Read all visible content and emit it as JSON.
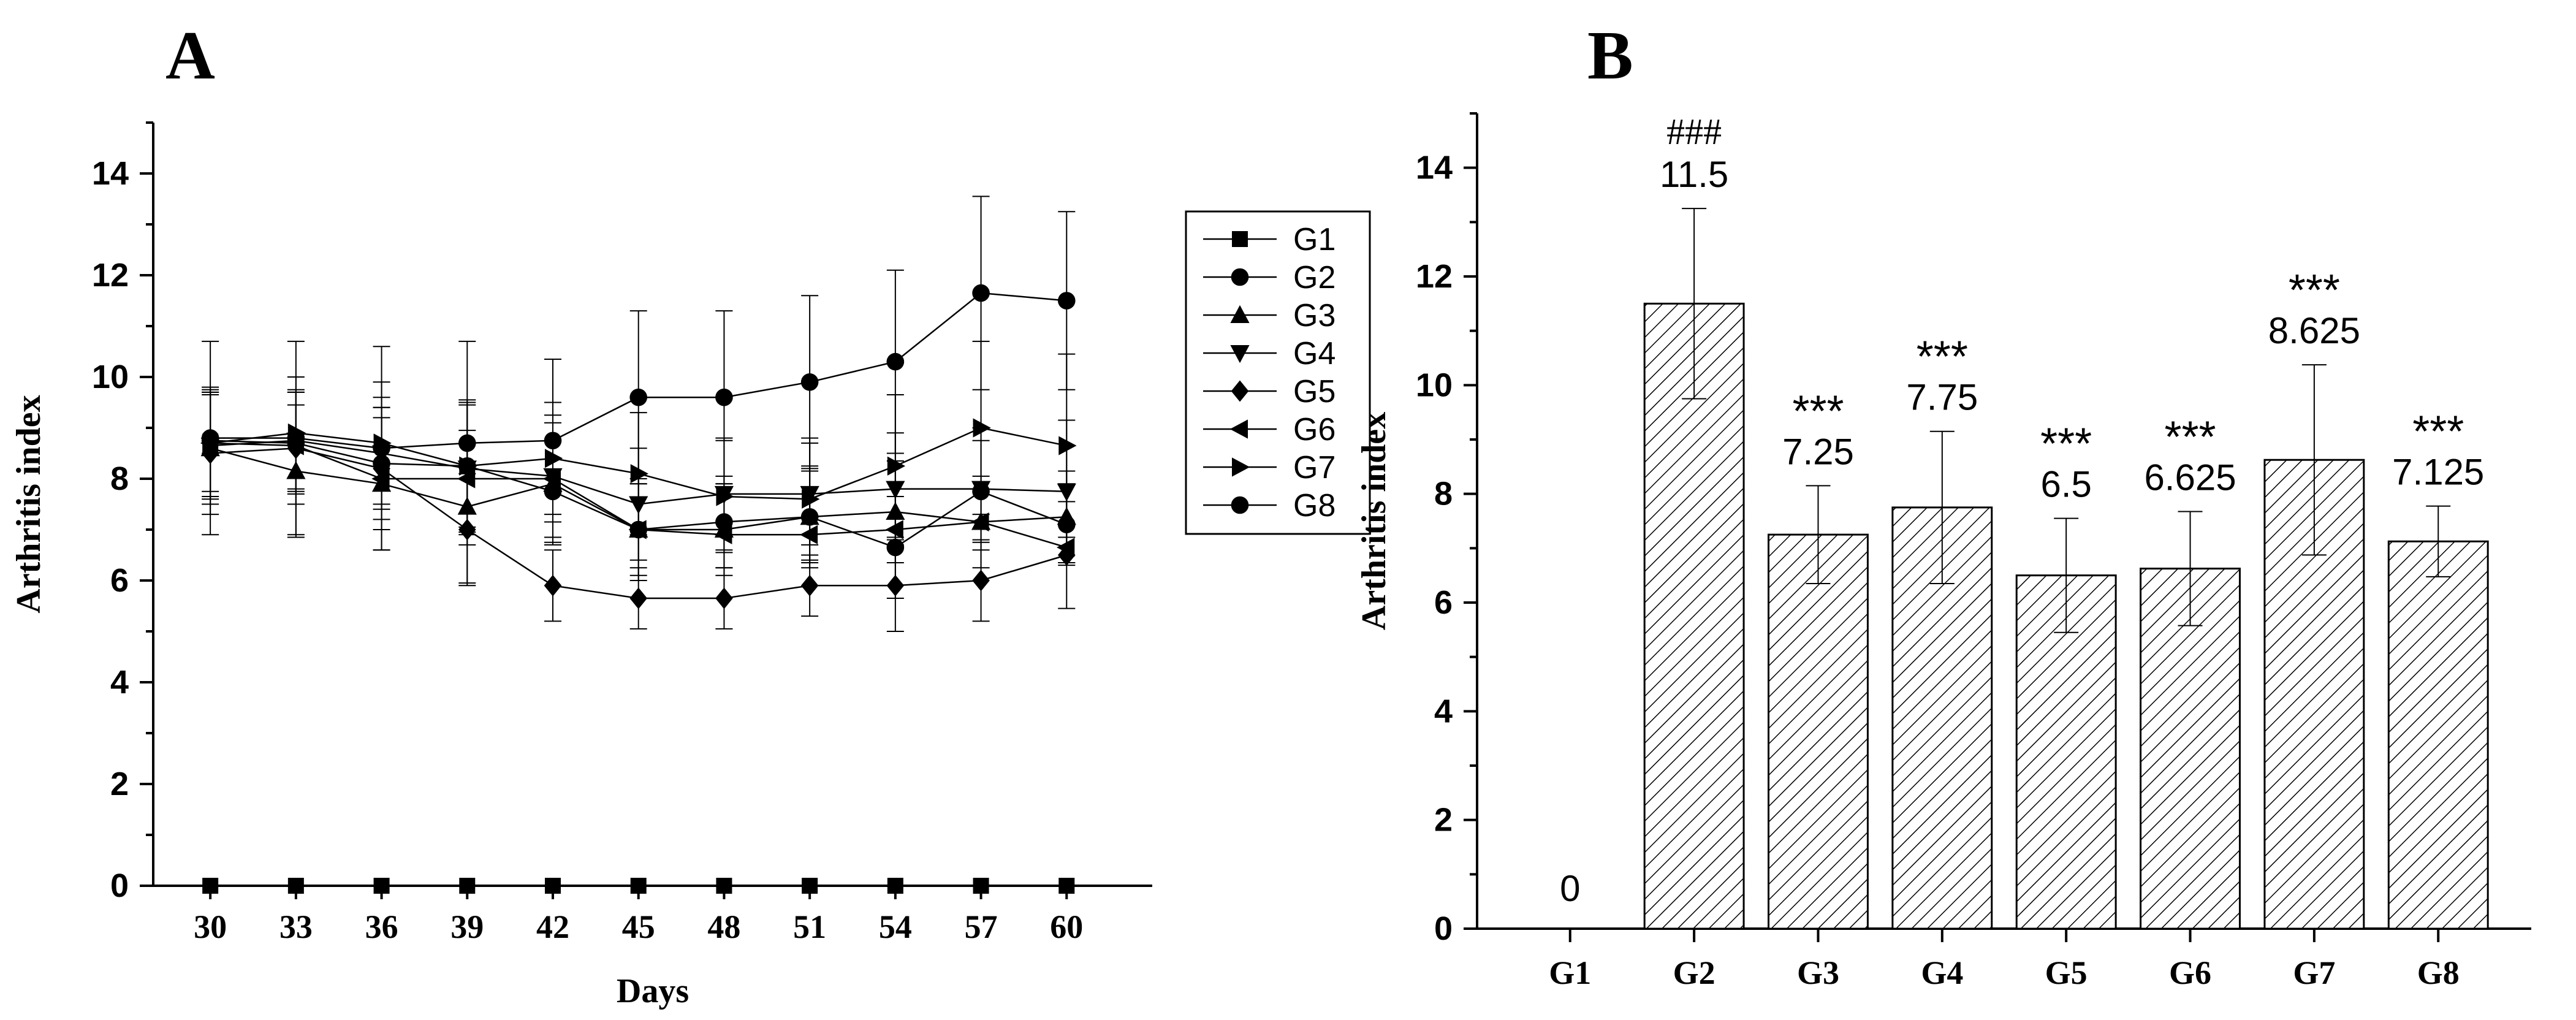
{
  "colors": {
    "ink": "#000000",
    "background": "#ffffff",
    "bar_fill": "#e6e6e6"
  },
  "chart_data": [
    {
      "panel": "A",
      "type": "line",
      "xlabel": "Days",
      "ylabel": "Arthritis index",
      "x": [
        30,
        33,
        36,
        39,
        42,
        45,
        48,
        51,
        54,
        57,
        60
      ],
      "xlim": [
        28,
        63
      ],
      "ylim": [
        0,
        15
      ],
      "yticks": [
        0,
        2,
        4,
        6,
        8,
        10,
        12,
        14
      ],
      "legend_position": "upper-right",
      "series": [
        {
          "name": "G1",
          "marker": "square",
          "values": [
            0,
            0,
            0,
            0,
            0,
            0,
            0,
            0,
            0,
            0,
            0
          ],
          "errors": [
            0,
            0,
            0,
            0,
            0,
            0,
            0,
            0,
            0,
            0,
            0
          ]
        },
        {
          "name": "G2",
          "marker": "circle",
          "values": [
            8.8,
            8.8,
            8.6,
            8.7,
            8.75,
            9.6,
            9.6,
            9.9,
            10.3,
            11.65,
            11.5
          ],
          "errors": [
            1.9,
            1.9,
            2.0,
            2.0,
            1.6,
            1.7,
            1.7,
            1.7,
            1.8,
            1.9,
            1.75
          ]
        },
        {
          "name": "G3",
          "marker": "triangle-up",
          "values": [
            8.6,
            8.15,
            7.9,
            7.45,
            7.9,
            7.0,
            7.0,
            7.25,
            7.35,
            7.15,
            7.25
          ],
          "errors": [
            1.1,
            1.3,
            1.3,
            1.5,
            1.2,
            1.0,
            0.9,
            1.0,
            1.0,
            0.9,
            0.9
          ]
        },
        {
          "name": "G4",
          "marker": "triangle-down",
          "values": [
            8.65,
            8.75,
            8.5,
            8.2,
            8.05,
            7.5,
            7.7,
            7.7,
            7.8,
            7.8,
            7.75
          ],
          "errors": [
            1.0,
            1.0,
            1.1,
            1.3,
            1.2,
            1.1,
            1.1,
            1.0,
            1.1,
            1.2,
            1.4
          ]
        },
        {
          "name": "G5",
          "marker": "diamond",
          "values": [
            8.5,
            8.6,
            8.2,
            7.0,
            5.9,
            5.65,
            5.65,
            5.9,
            5.9,
            6.0,
            6.5
          ],
          "errors": [
            1.2,
            1.1,
            1.2,
            1.1,
            0.7,
            0.6,
            0.6,
            0.6,
            0.9,
            0.8,
            1.05
          ]
        },
        {
          "name": "G6",
          "marker": "triangle-left",
          "values": [
            8.7,
            8.65,
            8.0,
            8.0,
            8.0,
            7.0,
            6.9,
            6.9,
            7.0,
            7.15,
            6.65
          ]
        },
        {
          "name": "G7",
          "marker": "triangle-right",
          "values": [
            8.7,
            8.9,
            8.7,
            8.25,
            8.4,
            8.1,
            7.65,
            7.6,
            8.25,
            9.0,
            8.65
          ],
          "errors": [
            1.1,
            1.1,
            1.2,
            1.3,
            1.1,
            1.2,
            1.1,
            1.2,
            1.4,
            1.7,
            1.8
          ]
        },
        {
          "name": "G8",
          "marker": "circle",
          "values": [
            8.75,
            8.7,
            8.3,
            8.25,
            7.75,
            7.0,
            7.15,
            7.25,
            6.65,
            7.75,
            7.1
          ],
          "errors": [
            1.0,
            1.0,
            1.1,
            1.2,
            1.0,
            0.9,
            0.9,
            0.9,
            1.0,
            1.0,
            0.8
          ]
        }
      ]
    },
    {
      "panel": "B",
      "type": "bar",
      "xlabel": "",
      "ylabel": "Arthritis index",
      "categories": [
        "G1",
        "G2",
        "G3",
        "G4",
        "G5",
        "G6",
        "G7",
        "G8"
      ],
      "values": [
        0,
        11.5,
        7.25,
        7.75,
        6.5,
        6.625,
        8.625,
        7.125
      ],
      "value_labels": [
        "0",
        "11.5",
        "7.25",
        "7.75",
        "6.5",
        "6.625",
        "8.625",
        "7.125"
      ],
      "errors": [
        0,
        1.75,
        0.9,
        1.4,
        1.05,
        1.05,
        1.75,
        0.65
      ],
      "significance": [
        "",
        "###",
        "***",
        "***",
        "***",
        "***",
        "***",
        "***"
      ],
      "ylim": [
        0,
        15
      ],
      "yticks": [
        0,
        2,
        4,
        6,
        8,
        10,
        12,
        14
      ],
      "bar_pattern": "diagonal-hatch"
    }
  ]
}
